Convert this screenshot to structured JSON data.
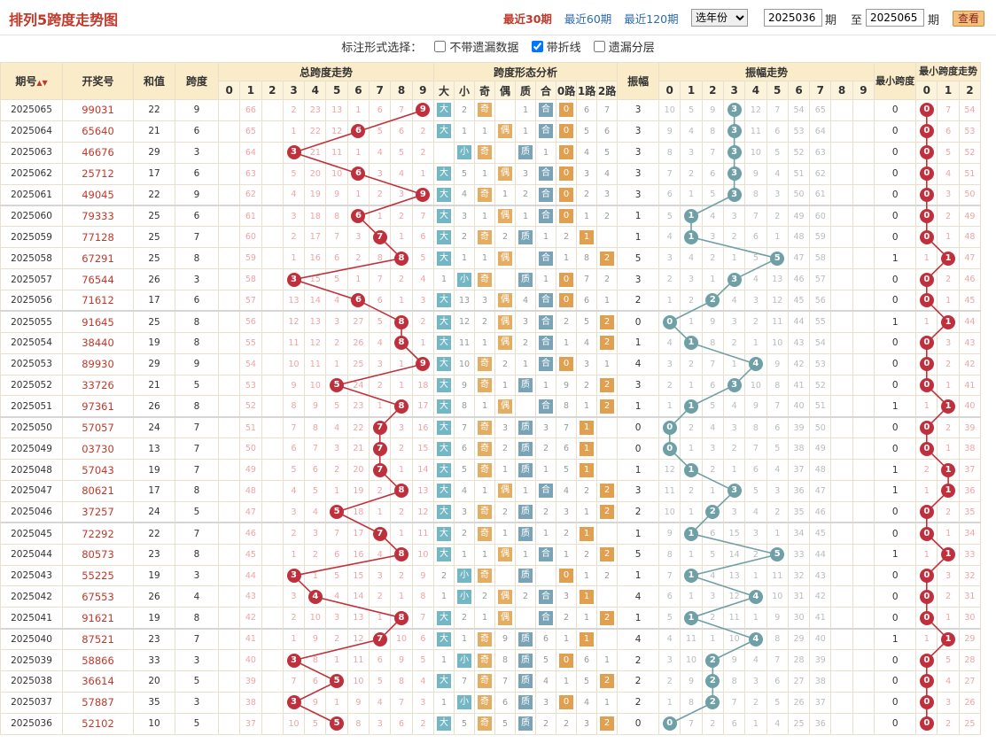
{
  "title": "排列5跨度走势图",
  "range_links": [
    "最近30期",
    "最近60期",
    "最近120期"
  ],
  "year_select": "选年份",
  "period_from": "2025036",
  "period_to": "2025065",
  "label_qi": "期",
  "label_zhi": "至",
  "query_label": "查看",
  "options": {
    "prompt": "标注形式选择：",
    "opt1": "不带遗漏数据",
    "opt2": "带折线",
    "opt3": "遗漏分层",
    "opt1_checked": false,
    "opt2_checked": true,
    "opt3_checked": false
  },
  "headers": {
    "period": "期号",
    "period_sort": "▲▼",
    "num": "开奖号",
    "sum": "和值",
    "span": "跨度",
    "span_trend": "总跨度走势",
    "shape": "跨度形态分析",
    "amp": "振幅",
    "amp_trend": "振幅走势",
    "min_span": "最小跨度",
    "min_span_trend": "最小跨度走势"
  },
  "shape_labels": [
    "大",
    "小",
    "奇",
    "偶",
    "质",
    "合",
    "0路",
    "1路",
    "2路"
  ],
  "digits": [
    "0",
    "1",
    "2",
    "3",
    "4",
    "5",
    "6",
    "7",
    "8",
    "9"
  ],
  "min_digits": [
    "0",
    "1",
    "2"
  ],
  "colors": {
    "accent": "#c0392b",
    "ball_red": "#c0303c",
    "ball_teal": "#6fa0a6"
  },
  "rows": [
    {
      "p": "2025065",
      "n": "99031",
      "s": "22",
      "k": 9,
      "sm": [
        "",
        "2",
        "",
        "",
        "1",
        "",
        "",
        "6",
        "7"
      ],
      "a": 3,
      "am": [
        "10",
        "5",
        "9",
        "",
        "12",
        "7",
        "54",
        "65",
        "",
        ""
      ],
      "ms": 0,
      "msm": [
        "",
        "7",
        "54"
      ],
      "km": [
        "",
        "66",
        "",
        "2",
        "23",
        "13",
        "1",
        "6",
        "7",
        ""
      ]
    },
    {
      "p": "2025064",
      "n": "65640",
      "s": "21",
      "k": 6,
      "sm": [
        "",
        "1",
        "1",
        "",
        "1",
        "",
        "",
        "5",
        "6"
      ],
      "a": 3,
      "am": [
        "9",
        "4",
        "8",
        "",
        "11",
        "6",
        "53",
        "64",
        "",
        ""
      ],
      "ms": 0,
      "msm": [
        "",
        "6",
        "53"
      ],
      "km": [
        "",
        "65",
        "",
        "1",
        "22",
        "12",
        "",
        "5",
        "6",
        "2"
      ]
    },
    {
      "p": "2025063",
      "n": "46676",
      "s": "29",
      "k": 3,
      "sm": [
        "",
        "",
        "1",
        "",
        "",
        "1",
        "",
        "4",
        "5"
      ],
      "a": 3,
      "am": [
        "8",
        "3",
        "7",
        "",
        "10",
        "5",
        "52",
        "63",
        "",
        ""
      ],
      "ms": 0,
      "msm": [
        "",
        "5",
        "52"
      ],
      "km": [
        "",
        "64",
        "",
        "",
        "21",
        "11",
        "1",
        "4",
        "5",
        "2"
      ]
    },
    {
      "p": "2025062",
      "n": "25712",
      "s": "17",
      "k": 6,
      "sm": [
        "",
        "5",
        "1",
        "",
        "3",
        "",
        "",
        "3",
        "4"
      ],
      "a": 3,
      "am": [
        "7",
        "2",
        "6",
        "",
        "9",
        "4",
        "51",
        "62",
        "",
        ""
      ],
      "ms": 0,
      "msm": [
        "",
        "4",
        "51"
      ],
      "km": [
        "",
        "63",
        "",
        "5",
        "20",
        "10",
        "",
        "3",
        "4",
        "1"
      ]
    },
    {
      "p": "2025061",
      "n": "49045",
      "s": "22",
      "k": 9,
      "sm": [
        "",
        "4",
        "",
        "1",
        "2",
        "",
        "",
        "2",
        "3"
      ],
      "a": 3,
      "am": [
        "6",
        "1",
        "5",
        "",
        "8",
        "3",
        "50",
        "61",
        "",
        ""
      ],
      "ms": 0,
      "msm": [
        "",
        "3",
        "50"
      ],
      "km": [
        "",
        "62",
        "",
        "4",
        "19",
        "9",
        "1",
        "2",
        "3",
        ""
      ]
    },
    {
      "p": "2025060",
      "n": "79333",
      "s": "25",
      "k": 6,
      "sm": [
        "",
        "3",
        "1",
        "",
        "1",
        "",
        "",
        "1",
        "2"
      ],
      "a": 1,
      "am": [
        "5",
        "",
        "4",
        "3",
        "7",
        "2",
        "49",
        "60",
        "",
        ""
      ],
      "ms": 0,
      "msm": [
        "",
        "2",
        "49"
      ],
      "km": [
        "",
        "61",
        "",
        "3",
        "18",
        "8",
        "",
        "1",
        "2",
        "7"
      ]
    },
    {
      "p": "2025059",
      "n": "77128",
      "s": "25",
      "k": 7,
      "sm": [
        "",
        "2",
        "",
        "2",
        "",
        "1",
        "2",
        "",
        ""
      ],
      "a": 1,
      "am": [
        "4",
        "",
        "3",
        "2",
        "6",
        "1",
        "48",
        "59",
        "",
        ""
      ],
      "ms": 0,
      "msm": [
        "",
        "1",
        "48"
      ],
      "km": [
        "",
        "60",
        "",
        "2",
        "17",
        "7",
        "3",
        "",
        "1",
        "6"
      ]
    },
    {
      "p": "2025058",
      "n": "67291",
      "s": "25",
      "k": 8,
      "sm": [
        "",
        "1",
        "1",
        "",
        "",
        "1",
        "1",
        "8",
        ""
      ],
      "a": 5,
      "am": [
        "3",
        "4",
        "2",
        "1",
        "5",
        "",
        "47",
        "58",
        "",
        ""
      ],
      "ms": 1,
      "msm": [
        "1",
        "",
        "47"
      ],
      "km": [
        "",
        "59",
        "",
        "1",
        "16",
        "6",
        "2",
        "8",
        "",
        "5"
      ]
    },
    {
      "p": "2025057",
      "n": "76544",
      "s": "26",
      "k": 3,
      "sm": [
        "1",
        "",
        "1",
        "",
        "",
        "1",
        "",
        "7",
        "2"
      ],
      "a": 3,
      "am": [
        "2",
        "3",
        "1",
        "",
        "4",
        "13",
        "46",
        "57",
        "",
        ""
      ],
      "ms": 0,
      "msm": [
        "",
        "2",
        "46"
      ],
      "km": [
        "",
        "58",
        "",
        "",
        "15",
        "5",
        "1",
        "7",
        "2",
        "4"
      ]
    },
    {
      "p": "2025056",
      "n": "71612",
      "s": "17",
      "k": 6,
      "sm": [
        "",
        "13",
        "3",
        "",
        "4",
        "",
        "",
        "6",
        "1"
      ],
      "a": 2,
      "am": [
        "1",
        "2",
        "",
        "4",
        "3",
        "12",
        "45",
        "56",
        "",
        ""
      ],
      "ms": 0,
      "msm": [
        "",
        "1",
        "45"
      ],
      "km": [
        "",
        "57",
        "",
        "13",
        "14",
        "4",
        "",
        "6",
        "1",
        "3"
      ]
    },
    {
      "p": "2025055",
      "n": "91645",
      "s": "25",
      "k": 8,
      "sm": [
        "",
        "12",
        "2",
        "",
        "3",
        "",
        "2",
        "5",
        ""
      ],
      "a": 0,
      "am": [
        "",
        "1",
        "9",
        "3",
        "2",
        "11",
        "44",
        "55",
        "",
        ""
      ],
      "ms": 1,
      "msm": [
        "1",
        "",
        "44"
      ],
      "km": [
        "",
        "56",
        "",
        "12",
        "13",
        "3",
        "27",
        "5",
        "",
        "2"
      ]
    },
    {
      "p": "2025054",
      "n": "38440",
      "s": "19",
      "k": 8,
      "sm": [
        "",
        "11",
        "1",
        "",
        "2",
        "",
        "1",
        "4",
        ""
      ],
      "a": 1,
      "am": [
        "4",
        "",
        "8",
        "2",
        "1",
        "10",
        "43",
        "54",
        "",
        ""
      ],
      "ms": 0,
      "msm": [
        "",
        "3",
        "43"
      ],
      "km": [
        "",
        "55",
        "",
        "11",
        "12",
        "2",
        "26",
        "4",
        "",
        "1"
      ]
    },
    {
      "p": "2025053",
      "n": "89930",
      "s": "29",
      "k": 9,
      "sm": [
        "",
        "10",
        "",
        "2",
        "1",
        "",
        "",
        "3",
        "1"
      ],
      "a": 4,
      "am": [
        "3",
        "2",
        "7",
        "1",
        "",
        "9",
        "42",
        "53",
        "",
        ""
      ],
      "ms": 0,
      "msm": [
        "",
        "2",
        "42"
      ],
      "km": [
        "",
        "54",
        "",
        "10",
        "11",
        "1",
        "25",
        "3",
        "1",
        ""
      ]
    },
    {
      "p": "2025052",
      "n": "33726",
      "s": "21",
      "k": 5,
      "sm": [
        "",
        "9",
        "",
        "1",
        "",
        "1",
        "9",
        "2",
        ""
      ],
      "a": 3,
      "am": [
        "2",
        "1",
        "6",
        "",
        "10",
        "8",
        "41",
        "52",
        "",
        ""
      ],
      "ms": 0,
      "msm": [
        "",
        "1",
        "41"
      ],
      "km": [
        "",
        "53",
        "",
        "9",
        "10",
        "",
        "24",
        "2",
        "1",
        "18"
      ]
    },
    {
      "p": "2025051",
      "n": "97361",
      "s": "26",
      "k": 8,
      "sm": [
        "",
        "8",
        "1",
        "",
        "",
        "1",
        "8",
        "1",
        ""
      ],
      "a": 1,
      "am": [
        "1",
        "",
        "5",
        "4",
        "9",
        "7",
        "40",
        "51",
        "",
        ""
      ],
      "ms": 1,
      "msm": [
        "1",
        "",
        "40"
      ],
      "km": [
        "",
        "52",
        "",
        "8",
        "9",
        "5",
        "23",
        "1",
        "",
        "17"
      ]
    },
    {
      "p": "2025050",
      "n": "57057",
      "s": "24",
      "k": 7,
      "sm": [
        "",
        "7",
        "",
        "3",
        "",
        "3",
        "7",
        "",
        ""
      ],
      "a": 0,
      "am": [
        "",
        "2",
        "4",
        "3",
        "8",
        "6",
        "39",
        "50",
        "",
        ""
      ],
      "ms": 0,
      "msm": [
        "",
        "2",
        "39"
      ],
      "km": [
        "",
        "51",
        "",
        "7",
        "8",
        "4",
        "22",
        "",
        "3",
        "16"
      ]
    },
    {
      "p": "2025049",
      "n": "03730",
      "s": "13",
      "k": 7,
      "sm": [
        "",
        "6",
        "",
        "2",
        "",
        "2",
        "6",
        "",
        ""
      ],
      "a": 0,
      "am": [
        "",
        "1",
        "3",
        "2",
        "7",
        "5",
        "38",
        "49",
        "",
        ""
      ],
      "ms": 0,
      "msm": [
        "",
        "1",
        "38"
      ],
      "km": [
        "",
        "50",
        "",
        "6",
        "7",
        "3",
        "21",
        "",
        "2",
        "15"
      ]
    },
    {
      "p": "2025048",
      "n": "57043",
      "s": "19",
      "k": 7,
      "sm": [
        "",
        "5",
        "",
        "1",
        "",
        "1",
        "5",
        "",
        ""
      ],
      "a": 1,
      "am": [
        "12",
        "",
        "2",
        "1",
        "6",
        "4",
        "37",
        "48",
        "",
        ""
      ],
      "ms": 1,
      "msm": [
        "2",
        "",
        "37"
      ],
      "km": [
        "",
        "49",
        "",
        "5",
        "6",
        "2",
        "20",
        "",
        "1",
        "14"
      ]
    },
    {
      "p": "2025047",
      "n": "80621",
      "s": "17",
      "k": 8,
      "sm": [
        "",
        "4",
        "1",
        "",
        "1",
        "",
        "4",
        "2",
        ""
      ],
      "a": 3,
      "am": [
        "11",
        "2",
        "1",
        "",
        "5",
        "3",
        "36",
        "47",
        "",
        ""
      ],
      "ms": 1,
      "msm": [
        "1",
        "",
        "36"
      ],
      "km": [
        "",
        "48",
        "",
        "4",
        "5",
        "1",
        "19",
        "2",
        "",
        "13"
      ]
    },
    {
      "p": "2025046",
      "n": "37257",
      "s": "24",
      "k": 5,
      "sm": [
        "",
        "3",
        "",
        "2",
        "",
        "2",
        "3",
        "1",
        ""
      ],
      "a": 2,
      "am": [
        "10",
        "1",
        "",
        "3",
        "4",
        "2",
        "35",
        "46",
        "",
        ""
      ],
      "ms": 0,
      "msm": [
        "",
        "2",
        "35"
      ],
      "km": [
        "",
        "47",
        "",
        "3",
        "4",
        "",
        "18",
        "1",
        "2",
        "12"
      ]
    },
    {
      "p": "2025045",
      "n": "72292",
      "s": "22",
      "k": 7,
      "sm": [
        "",
        "2",
        "",
        "1",
        "",
        "1",
        "2",
        "",
        ""
      ],
      "a": 1,
      "am": [
        "9",
        "",
        "6",
        "15",
        "3",
        "1",
        "34",
        "45",
        "",
        ""
      ],
      "ms": 0,
      "msm": [
        "",
        "1",
        "34"
      ],
      "km": [
        "",
        "46",
        "",
        "2",
        "3",
        "7",
        "17",
        "",
        "1",
        "11"
      ]
    },
    {
      "p": "2025044",
      "n": "80573",
      "s": "23",
      "k": 8,
      "sm": [
        "",
        "1",
        "1",
        "",
        "1",
        "",
        "1",
        "2",
        ""
      ],
      "a": 5,
      "am": [
        "8",
        "1",
        "5",
        "14",
        "2",
        "",
        "33",
        "44",
        "",
        ""
      ],
      "ms": 1,
      "msm": [
        "1",
        "",
        "33"
      ],
      "km": [
        "",
        "45",
        "",
        "1",
        "2",
        "6",
        "16",
        "4",
        "",
        "10"
      ]
    },
    {
      "p": "2025043",
      "n": "55225",
      "s": "19",
      "k": 3,
      "sm": [
        "2",
        "",
        "1",
        "",
        "",
        "",
        "",
        "1",
        "2"
      ],
      "a": 1,
      "am": [
        "7",
        "",
        "4",
        "13",
        "1",
        "11",
        "32",
        "43",
        "",
        ""
      ],
      "ms": 0,
      "msm": [
        "",
        "3",
        "32"
      ],
      "km": [
        "",
        "44",
        "",
        "",
        "1",
        "5",
        "15",
        "3",
        "2",
        "9"
      ]
    },
    {
      "p": "2025042",
      "n": "67553",
      "s": "26",
      "k": 4,
      "sm": [
        "1",
        "",
        "2",
        "",
        "2",
        "",
        "3",
        "",
        ""
      ],
      "a": 4,
      "am": [
        "6",
        "1",
        "3",
        "12",
        "",
        "10",
        "31",
        "42",
        "",
        ""
      ],
      "ms": 0,
      "msm": [
        "",
        "2",
        "31"
      ],
      "km": [
        "",
        "43",
        "",
        "3",
        "",
        "4",
        "14",
        "2",
        "1",
        "8"
      ]
    },
    {
      "p": "2025041",
      "n": "91621",
      "s": "19",
      "k": 8,
      "sm": [
        "",
        "2",
        "1",
        "",
        "",
        "",
        "2",
        "1",
        ""
      ],
      "a": 1,
      "am": [
        "5",
        "",
        "2",
        "11",
        "1",
        "9",
        "30",
        "41",
        "",
        ""
      ],
      "ms": 0,
      "msm": [
        "",
        "1",
        "30"
      ],
      "km": [
        "",
        "42",
        "",
        "2",
        "10",
        "3",
        "13",
        "1",
        "",
        "7"
      ]
    },
    {
      "p": "2025040",
      "n": "87521",
      "s": "23",
      "k": 7,
      "sm": [
        "",
        "1",
        "",
        "9",
        "",
        "6",
        "1",
        "",
        ""
      ],
      "a": 4,
      "am": [
        "4",
        "11",
        "1",
        "10",
        "",
        "8",
        "29",
        "40",
        "",
        ""
      ],
      "ms": 1,
      "msm": [
        "1",
        "",
        "29"
      ],
      "km": [
        "",
        "41",
        "",
        "1",
        "9",
        "2",
        "12",
        "",
        "10",
        "6"
      ]
    },
    {
      "p": "2025039",
      "n": "58866",
      "s": "33",
      "k": 3,
      "sm": [
        "1",
        "",
        "",
        "8",
        "",
        "5",
        "",
        "6",
        "1"
      ],
      "a": 2,
      "am": [
        "3",
        "10",
        "",
        "9",
        "4",
        "7",
        "28",
        "39",
        "",
        ""
      ],
      "ms": 0,
      "msm": [
        "",
        "5",
        "28"
      ],
      "km": [
        "",
        "40",
        "",
        "",
        "8",
        "1",
        "11",
        "6",
        "9",
        "5"
      ]
    },
    {
      "p": "2025038",
      "n": "36614",
      "s": "20",
      "k": 5,
      "sm": [
        "",
        "7",
        "",
        "7",
        "",
        "4",
        "1",
        "5",
        ""
      ],
      "a": 2,
      "am": [
        "2",
        "9",
        "",
        "8",
        "3",
        "6",
        "27",
        "38",
        "",
        ""
      ],
      "ms": 0,
      "msm": [
        "",
        "4",
        "27"
      ],
      "km": [
        "",
        "39",
        "",
        "7",
        "6",
        "",
        "10",
        "5",
        "8",
        "4"
      ]
    },
    {
      "p": "2025037",
      "n": "57887",
      "s": "35",
      "k": 3,
      "sm": [
        "1",
        "",
        "",
        "6",
        "",
        "3",
        "",
        "4",
        "1"
      ],
      "a": 2,
      "am": [
        "1",
        "8",
        "",
        "7",
        "2",
        "5",
        "26",
        "37",
        "",
        ""
      ],
      "ms": 0,
      "msm": [
        "",
        "3",
        "26"
      ],
      "km": [
        "",
        "38",
        "",
        "",
        "9",
        "1",
        "9",
        "4",
        "7",
        "3"
      ]
    },
    {
      "p": "2025036",
      "n": "52102",
      "s": "10",
      "k": 5,
      "sm": [
        "",
        "5",
        "",
        "5",
        "",
        "2",
        "2",
        "3",
        ""
      ],
      "a": 0,
      "am": [
        "",
        "7",
        "2",
        "6",
        "1",
        "4",
        "25",
        "36",
        "",
        ""
      ],
      "ms": 0,
      "msm": [
        "",
        "2",
        "25"
      ],
      "km": [
        "",
        "37",
        "",
        "10",
        "5",
        "",
        "8",
        "3",
        "6",
        "2"
      ]
    }
  ]
}
